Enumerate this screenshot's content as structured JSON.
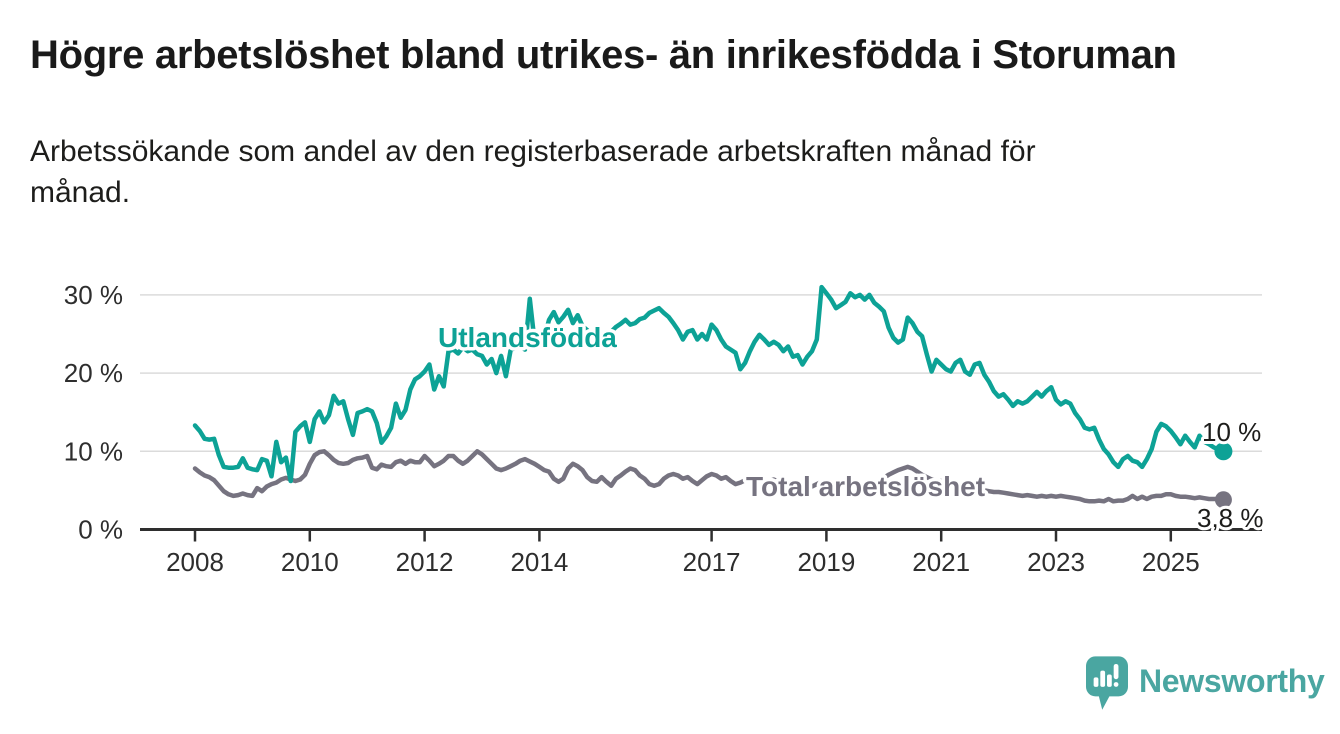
{
  "header": {
    "title": "Högre arbetslöshet bland utrikes- än inrikesfödda i Storuman",
    "subtitle_line1": "Arbetssökande som andel av den registerbaserade arbetskraften månad för",
    "subtitle_line2": "månad."
  },
  "chart_data": {
    "type": "line",
    "title": "Högre arbetslöshet bland utrikes- än inrikesfödda i Storuman",
    "subtitle": "Arbetssökande som andel av den registerbaserade arbetskraften månad för månad.",
    "grid": "horizontal-only",
    "x_axis": {
      "frequency": "monthly",
      "start": "2008-01",
      "end": "2025-12",
      "tick_labels": [
        "2008",
        "2010",
        "2012",
        "2014",
        "2017",
        "2019",
        "2021",
        "2023",
        "2025"
      ]
    },
    "y_axis": {
      "unit": "%",
      "tick_values": [
        0,
        10,
        20,
        30
      ],
      "tick_labels": [
        "0 %",
        "10 %",
        "20 %",
        "30 %"
      ],
      "ylim": [
        0,
        31.5
      ]
    },
    "series": [
      {
        "name": "Utlandsfödda",
        "color": "#0da296",
        "end_label": "10 %",
        "end_value": 10.0,
        "values": [
          13.3,
          12.6,
          11.6,
          11.5,
          11.6,
          9.5,
          8.0,
          7.9,
          7.9,
          8.0,
          9.1,
          7.9,
          7.7,
          7.6,
          9.0,
          8.8,
          6.8,
          11.2,
          8.6,
          9.2,
          6.2,
          12.5,
          13.2,
          13.7,
          11.2,
          14.1,
          15.1,
          13.7,
          14.6,
          17.1,
          16.1,
          16.4,
          14.1,
          12.1,
          14.9,
          15.1,
          15.4,
          15.1,
          13.6,
          11.1,
          11.9,
          13.0,
          16.1,
          14.3,
          15.3,
          17.9,
          19.2,
          19.6,
          20.2,
          21.1,
          17.9,
          19.6,
          18.3,
          22.8,
          23.0,
          22.5,
          23.3,
          22.8,
          23.0,
          22.4,
          22.2,
          21.1,
          21.8,
          20.0,
          22.2,
          19.6,
          23.0,
          23.2,
          23.4,
          23.0,
          29.5,
          24.0,
          23.5,
          24.5,
          26.8,
          27.8,
          26.5,
          27.2,
          28.1,
          26.4,
          27.4,
          26.0,
          25.5,
          24.9,
          25.5,
          25.2,
          24.9,
          25.3,
          25.9,
          26.3,
          26.8,
          26.2,
          26.4,
          26.9,
          27.1,
          27.7,
          28.0,
          28.3,
          27.7,
          27.2,
          26.4,
          25.5,
          24.3,
          25.3,
          25.5,
          24.3,
          25.0,
          24.3,
          26.2,
          25.5,
          24.3,
          23.4,
          23.0,
          22.6,
          20.5,
          21.3,
          22.8,
          24.0,
          24.9,
          24.3,
          23.6,
          24.0,
          23.6,
          22.8,
          23.4,
          22.1,
          22.3,
          21.1,
          22.1,
          22.8,
          24.3,
          31.0,
          30.2,
          29.4,
          28.3,
          28.7,
          29.1,
          30.2,
          29.7,
          30.0,
          29.4,
          30.0,
          29.0,
          28.5,
          27.9,
          25.8,
          24.5,
          23.9,
          24.3,
          27.1,
          26.4,
          25.3,
          24.7,
          22.4,
          20.2,
          21.7,
          21.1,
          20.5,
          20.2,
          21.3,
          21.7,
          20.2,
          19.8,
          21.1,
          21.3,
          19.8,
          18.9,
          17.7,
          17.0,
          17.3,
          16.6,
          15.8,
          16.4,
          16.1,
          16.4,
          17.0,
          17.6,
          17.0,
          17.7,
          18.2,
          16.6,
          16.0,
          16.4,
          16.1,
          14.9,
          14.1,
          13.0,
          12.8,
          13.0,
          11.5,
          10.3,
          9.6,
          8.6,
          8.0,
          9.0,
          9.4,
          8.8,
          8.6,
          8.0,
          9.0,
          10.3,
          12.5,
          13.5,
          13.2,
          12.6,
          11.8,
          10.9,
          12.0,
          11.2,
          10.5,
          12.0,
          11.2,
          10.9,
          10.5,
          10.2,
          10.0
        ]
      },
      {
        "name": "Total arbetslöshet",
        "color": "#767380",
        "end_label": "3,8 %",
        "end_value": 3.8,
        "values": [
          7.8,
          7.3,
          6.9,
          6.7,
          6.3,
          5.6,
          4.9,
          4.5,
          4.3,
          4.4,
          4.6,
          4.4,
          4.3,
          5.3,
          4.9,
          5.5,
          5.8,
          6.0,
          6.4,
          6.6,
          6.4,
          6.2,
          6.4,
          7.0,
          8.4,
          9.5,
          9.9,
          10.0,
          9.5,
          8.9,
          8.5,
          8.4,
          8.5,
          8.9,
          9.1,
          9.2,
          9.4,
          7.9,
          7.7,
          8.3,
          8.1,
          8.0,
          8.6,
          8.8,
          8.4,
          8.8,
          8.6,
          8.6,
          9.4,
          8.8,
          8.1,
          8.4,
          8.8,
          9.4,
          9.4,
          8.8,
          8.4,
          8.8,
          9.4,
          10.0,
          9.6,
          9.0,
          8.4,
          7.8,
          7.6,
          7.8,
          8.1,
          8.4,
          8.8,
          9.0,
          8.7,
          8.4,
          8.0,
          7.6,
          7.4,
          6.5,
          6.1,
          6.5,
          7.8,
          8.4,
          8.1,
          7.6,
          6.7,
          6.2,
          6.1,
          6.7,
          6.1,
          5.6,
          6.5,
          6.9,
          7.4,
          7.8,
          7.6,
          6.9,
          6.5,
          5.8,
          5.6,
          5.8,
          6.5,
          6.9,
          7.1,
          6.9,
          6.5,
          6.7,
          6.2,
          5.8,
          6.3,
          6.8,
          7.1,
          6.9,
          6.5,
          6.7,
          6.2,
          5.8,
          6.0,
          6.3,
          6.6,
          6.4,
          6.1,
          5.9,
          6.2,
          6.4,
          6.1,
          5.8,
          5.6,
          5.9,
          6.2,
          6.0,
          5.7,
          5.5,
          5.8,
          6.1,
          6.3,
          6.1,
          5.8,
          5.6,
          5.5,
          5.8,
          6.1,
          5.9,
          5.6,
          5.5,
          5.8,
          6.2,
          6.6,
          7.0,
          7.3,
          7.6,
          7.8,
          8.0,
          7.8,
          7.4,
          7.0,
          6.7,
          6.4,
          6.2,
          6.2,
          6.0,
          5.8,
          5.6,
          5.4,
          5.3,
          5.5,
          5.3,
          5.1,
          5.0,
          4.9,
          4.8,
          4.8,
          4.7,
          4.6,
          4.5,
          4.4,
          4.3,
          4.4,
          4.3,
          4.2,
          4.3,
          4.2,
          4.3,
          4.2,
          4.3,
          4.2,
          4.1,
          4.0,
          3.9,
          3.7,
          3.6,
          3.6,
          3.7,
          3.6,
          3.9,
          3.6,
          3.7,
          3.7,
          3.9,
          4.3,
          3.9,
          4.2,
          3.9,
          4.2,
          4.3,
          4.3,
          4.5,
          4.5,
          4.3,
          4.2,
          4.2,
          4.1,
          4.0,
          4.1,
          4.0,
          3.9,
          3.9,
          3.9,
          3.8
        ]
      }
    ],
    "colors": {
      "grid": "#dbdbdb",
      "axis": "#2e2e2e",
      "tick_text": "#2e2e2e",
      "value_label_text": "#1d1d1b"
    }
  },
  "footer": {
    "brand": "Newsworthy",
    "logo_color": "#4aa6a1",
    "logo_icon": "speech-bubble-bar-chart-icon"
  }
}
